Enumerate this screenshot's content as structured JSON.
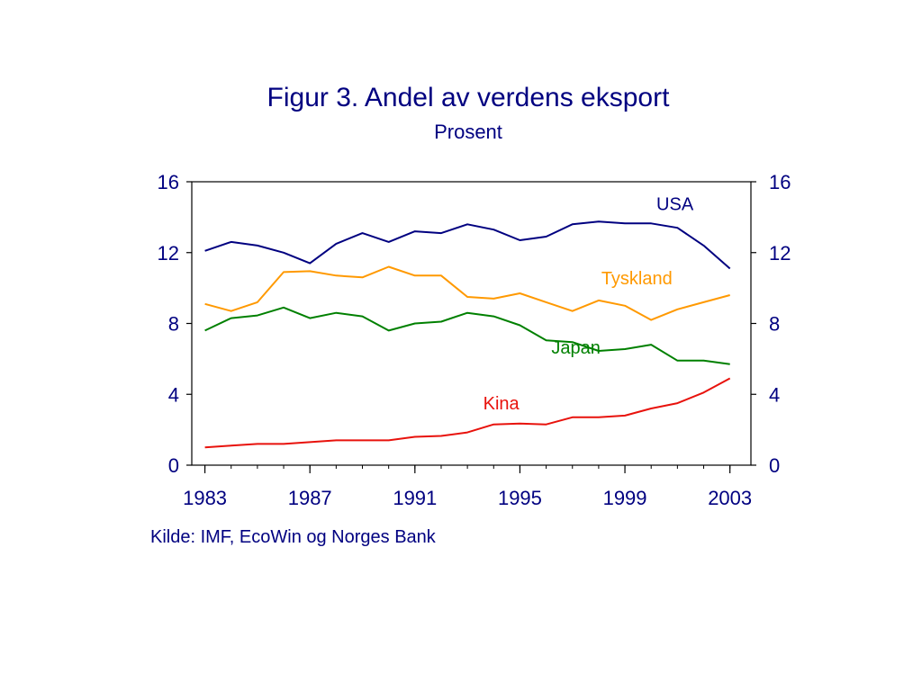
{
  "title": "Figur 3. Andel av verdens eksport",
  "subtitle": "Prosent",
  "source": "Kilde: IMF, EcoWin og Norges Bank",
  "colors": {
    "text": "#000080",
    "axis": "#000000"
  },
  "chart_data": {
    "type": "line",
    "title": "Figur 3. Andel av verdens eksport",
    "subtitle": "Prosent",
    "xlabel": "",
    "ylabel": "",
    "xlim": [
      1982.5,
      2003.8
    ],
    "ylim": [
      0,
      16
    ],
    "x_ticks": [
      "1983",
      "1987",
      "1991",
      "1995",
      "1999",
      "2003"
    ],
    "y_ticks": [
      "0",
      "4",
      "8",
      "12",
      "16"
    ],
    "y_axis_sides": "both",
    "grid": false,
    "x": [
      1983,
      1984,
      1985,
      1986,
      1987,
      1988,
      1989,
      1990,
      1991,
      1992,
      1993,
      1994,
      1995,
      1996,
      1997,
      1998,
      1999,
      2000,
      2001,
      2002,
      2003
    ],
    "series": [
      {
        "name": "USA",
        "color": "#000080",
        "values": [
          12.1,
          12.6,
          12.4,
          12.0,
          11.4,
          12.5,
          13.1,
          12.6,
          13.2,
          13.1,
          13.6,
          13.3,
          12.7,
          12.9,
          13.6,
          13.75,
          13.65,
          13.65,
          13.4,
          12.4,
          11.1
        ]
      },
      {
        "name": "Tyskland",
        "color": "#FF9900",
        "values": [
          9.1,
          8.7,
          9.2,
          10.9,
          10.95,
          10.7,
          10.6,
          11.2,
          10.7,
          10.7,
          9.5,
          9.4,
          9.7,
          9.2,
          8.7,
          9.3,
          9.0,
          8.2,
          8.8,
          9.2,
          9.6
        ]
      },
      {
        "name": "Japan",
        "color": "#008000",
        "values": [
          7.6,
          8.3,
          8.45,
          8.9,
          8.3,
          8.6,
          8.4,
          7.6,
          8.0,
          8.1,
          8.6,
          8.4,
          7.9,
          7.05,
          6.95,
          6.45,
          6.55,
          6.8,
          5.9,
          5.9,
          5.7
        ]
      },
      {
        "name": "Kina",
        "color": "#E8120C",
        "values": [
          1.0,
          1.1,
          1.2,
          1.2,
          1.3,
          1.4,
          1.4,
          1.4,
          1.6,
          1.65,
          1.85,
          2.3,
          2.35,
          2.3,
          2.7,
          2.7,
          2.8,
          3.2,
          3.5,
          4.1,
          4.9
        ]
      }
    ],
    "series_label_anchor": {
      "USA": [
        2000.2,
        14.4
      ],
      "Tyskland": [
        1998.1,
        10.2
      ],
      "Japan": [
        1996.2,
        6.3
      ],
      "Kina": [
        1993.6,
        3.15
      ]
    }
  }
}
